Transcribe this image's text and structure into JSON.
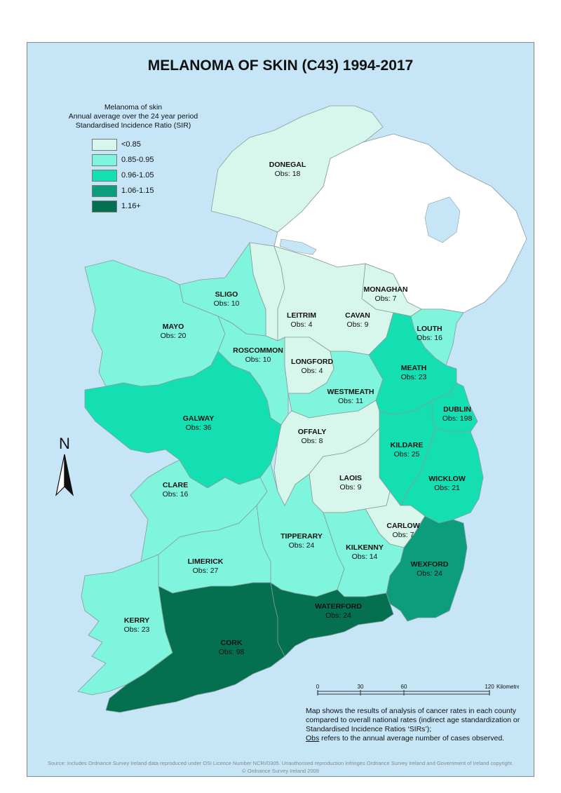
{
  "title": "MELANOMA OF SKIN (C43) 1994-2017",
  "legend": {
    "heading": [
      "Melanoma of skin",
      "Annual average over the 24 year period",
      "Standardised Incidence Ratio (SIR)"
    ],
    "classes": [
      {
        "label": "<0.85",
        "color": "#d8f7ec"
      },
      {
        "label": "0.85-0.95",
        "color": "#7ff5dd"
      },
      {
        "label": "0.96-1.05",
        "color": "#14dfb2"
      },
      {
        "label": "1.06-1.15",
        "color": "#0c9e7c"
      },
      {
        "label": "1.16+",
        "color": "#057050"
      }
    ]
  },
  "counties": [
    {
      "id": "donegal",
      "name": "DONEGAL",
      "obs": "Obs: 18",
      "class": 0
    },
    {
      "id": "monaghan",
      "name": "MONAGHAN",
      "obs": "Obs: 7",
      "class": 0
    },
    {
      "id": "sligo",
      "name": "SLIGO",
      "obs": "Obs: 10",
      "class": 1
    },
    {
      "id": "leitrim",
      "name": "LEITRIM",
      "obs": "Obs: 4",
      "class": 0
    },
    {
      "id": "cavan",
      "name": "CAVAN",
      "obs": "Obs: 9",
      "class": 0
    },
    {
      "id": "louth",
      "name": "LOUTH",
      "obs": "Obs: 16",
      "class": 1
    },
    {
      "id": "mayo",
      "name": "MAYO",
      "obs": "Obs: 20",
      "class": 1
    },
    {
      "id": "roscommon",
      "name": "ROSCOMMON",
      "obs": "Obs: 10",
      "class": 1
    },
    {
      "id": "longford",
      "name": "LONGFORD",
      "obs": "Obs: 4",
      "class": 0
    },
    {
      "id": "meath",
      "name": "MEATH",
      "obs": "Obs: 23",
      "class": 2
    },
    {
      "id": "westmeath",
      "name": "WESTMEATH",
      "obs": "Obs: 11",
      "class": 1
    },
    {
      "id": "dublin",
      "name": "DUBLIN",
      "obs": "Obs: 198",
      "class": 2
    },
    {
      "id": "galway",
      "name": "GALWAY",
      "obs": "Obs: 36",
      "class": 2
    },
    {
      "id": "offaly",
      "name": "OFFALY",
      "obs": "Obs: 8",
      "class": 0
    },
    {
      "id": "kildare",
      "name": "KILDARE",
      "obs": "Obs: 25",
      "class": 2
    },
    {
      "id": "laois",
      "name": "LAOIS",
      "obs": "Obs: 9",
      "class": 0
    },
    {
      "id": "wicklow",
      "name": "WICKLOW",
      "obs": "Obs: 21",
      "class": 2
    },
    {
      "id": "clare",
      "name": "CLARE",
      "obs": "Obs: 16",
      "class": 1
    },
    {
      "id": "carlow",
      "name": "CARLOW",
      "obs": "Obs: 7",
      "class": 0
    },
    {
      "id": "tipperary",
      "name": "TIPPERARY",
      "obs": "Obs: 24",
      "class": 1
    },
    {
      "id": "kilkenny",
      "name": "KILKENNY",
      "obs": "Obs: 14",
      "class": 1
    },
    {
      "id": "limerick",
      "name": "LIMERICK",
      "obs": "Obs: 27",
      "class": 1
    },
    {
      "id": "wexford",
      "name": "WEXFORD",
      "obs": "Obs: 24",
      "class": 3
    },
    {
      "id": "waterford",
      "name": "WATERFORD",
      "obs": "Obs: 24",
      "class": 4
    },
    {
      "id": "kerry",
      "name": "KERRY",
      "obs": "Obs: 23",
      "class": 1
    },
    {
      "id": "cork",
      "name": "CORK",
      "obs": "Obs: 98",
      "class": 4
    }
  ],
  "north_arrow": {
    "label": "N"
  },
  "scale_bar": {
    "ticks": [
      "0",
      "30",
      "60",
      "120"
    ],
    "unit": "Kilometres"
  },
  "note": {
    "line1": "Map shows the results of analysis of cancer rates in each county",
    "line2": "compared to overall national rates (indirect age standardization or",
    "line3": "Standardised Incidence Ratios ‘SIRs’);",
    "line4_u": "Obs",
    "line4": " refers to the annual average number of cases observed."
  },
  "source": {
    "line1": "Source: Includes Ordnance Survey Ireland data reproduced under OSi Licence Number NCRI/0305. Unauthorised reproduction infringes Ordnance Survey Ireland and Government of Ireland copyright.",
    "line2": "© Ordnance Survey Ireland 2009"
  },
  "colors": {
    "sea": "#c6e6f8",
    "northern_ireland": "#ffffff",
    "border": "#8a9a9a"
  }
}
